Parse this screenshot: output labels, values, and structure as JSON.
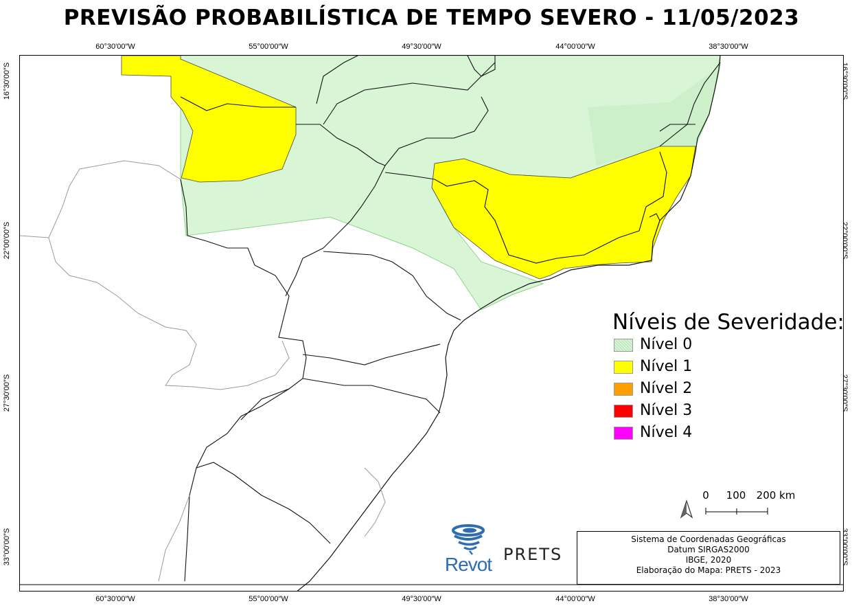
{
  "title": "PREVISÃO PROBABILÍSTICA DE TEMPO SEVERO - 11/05/2023",
  "axes": {
    "longitudes": [
      "60°30′00″W",
      "55°00′00″W",
      "49°30′00″W",
      "44°00′00″W",
      "38°30′00″W"
    ],
    "latitudes": [
      "16°30′00″S",
      "22°00′00″S",
      "27°30′00″S",
      "33°00′00″S"
    ]
  },
  "legend": {
    "title": "Níveis de Severidade:",
    "items": [
      {
        "label": "Nível 0",
        "color": "#d8f5d6"
      },
      {
        "label": "Nível 1",
        "color": "#ffff00"
      },
      {
        "label": "Nível 2",
        "color": "#ff9e00"
      },
      {
        "label": "Nível 3",
        "color": "#ff0000"
      },
      {
        "label": "Nível 4",
        "color": "#ff00ff"
      }
    ]
  },
  "scale": {
    "labels": [
      "0",
      "100",
      "200 km"
    ]
  },
  "info": {
    "line1": "Sistema de Coordenadas Geográficas",
    "line2": "Datum SIRGAS2000",
    "line3": "IBGE, 2020",
    "line4": "Elaboração do Mapa: PRETS - 2023"
  },
  "logos": {
    "revot": "Revot",
    "prets": "PRETS"
  },
  "north_arrow_icon": "north-arrow-icon"
}
